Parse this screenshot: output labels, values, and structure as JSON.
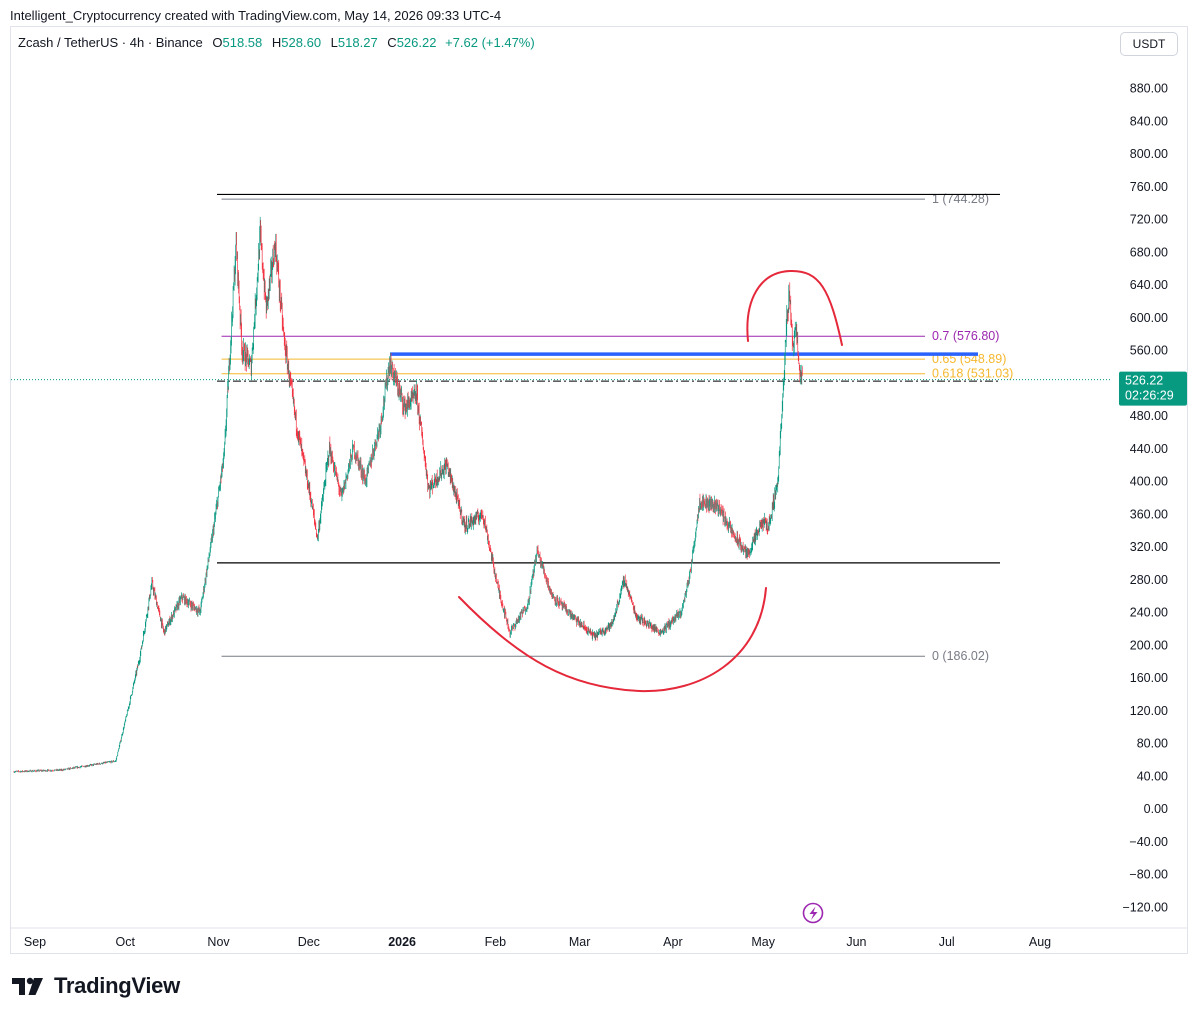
{
  "header": {
    "attribution": "Intelligent_Cryptocurrency created with TradingView.com, May 14, 2026 09:33 UTC-4"
  },
  "symbol": {
    "name": "Zcash / TetherUS · 4h · Binance",
    "o_label": "O",
    "o_value": "518.58",
    "h_label": "H",
    "h_value": "528.60",
    "l_label": "L",
    "l_value": "518.27",
    "c_label": "C",
    "c_value": "526.22",
    "change": "+7.62 (+1.47%)"
  },
  "currency_button": "USDT",
  "footer": {
    "brand": "TradingView"
  },
  "colors": {
    "up": "#089981",
    "down": "#f23645",
    "blue_line": "#2962ff",
    "fib_07": "#9c27b0",
    "fib_gold": "#f5b82e",
    "fib_gray": "#787b86",
    "annotation": "#e5283a",
    "price_badge": "#089981",
    "bolt": "#9c27b0"
  },
  "chart_data": {
    "type": "candlestick",
    "timeframe": "4h",
    "y_axis": {
      "ylim": [
        -130,
        920
      ],
      "ticks": [
        "880.00",
        "840.00",
        "800.00",
        "760.00",
        "720.00",
        "680.00",
        "640.00",
        "600.00",
        "560.00",
        "520.00",
        "480.00",
        "440.00",
        "400.00",
        "360.00",
        "320.00",
        "280.00",
        "240.00",
        "200.00",
        "160.00",
        "120.00",
        "80.00",
        "40.00",
        "0.00",
        "−40.00",
        "−80.00",
        "−120.00"
      ]
    },
    "x_axis": {
      "range": [
        "2025-08-25",
        "2026-08-28"
      ],
      "ticks": [
        {
          "label": "Sep",
          "date": "2025-09-01"
        },
        {
          "label": "Oct",
          "date": "2025-10-01"
        },
        {
          "label": "Nov",
          "date": "2025-11-01"
        },
        {
          "label": "Dec",
          "date": "2025-12-01"
        },
        {
          "label": "2026",
          "date": "2026-01-01",
          "bold": true
        },
        {
          "label": "Feb",
          "date": "2026-02-01"
        },
        {
          "label": "Mar",
          "date": "2026-03-01"
        },
        {
          "label": "Apr",
          "date": "2026-04-01"
        },
        {
          "label": "May",
          "date": "2026-05-01"
        },
        {
          "label": "Jun",
          "date": "2026-06-01"
        },
        {
          "label": "Jul",
          "date": "2026-07-01"
        },
        {
          "label": "Aug",
          "date": "2026-08-01"
        }
      ]
    },
    "price_path": [
      [
        "2025-08-25",
        45
      ],
      [
        "2025-09-10",
        47
      ],
      [
        "2025-09-28",
        58
      ],
      [
        "2025-10-02",
        120
      ],
      [
        "2025-10-06",
        185
      ],
      [
        "2025-10-10",
        275
      ],
      [
        "2025-10-14",
        215
      ],
      [
        "2025-10-20",
        258
      ],
      [
        "2025-10-26",
        240
      ],
      [
        "2025-10-30",
        330
      ],
      [
        "2025-11-03",
        430
      ],
      [
        "2025-11-07",
        690
      ],
      [
        "2025-11-09",
        560
      ],
      [
        "2025-11-12",
        540
      ],
      [
        "2025-11-15",
        700
      ],
      [
        "2025-11-17",
        610
      ],
      [
        "2025-11-20",
        690
      ],
      [
        "2025-11-23",
        570
      ],
      [
        "2025-11-27",
        470
      ],
      [
        "2025-12-02",
        375
      ],
      [
        "2025-12-04",
        330
      ],
      [
        "2025-12-08",
        440
      ],
      [
        "2025-12-12",
        380
      ],
      [
        "2025-12-16",
        440
      ],
      [
        "2025-12-20",
        400
      ],
      [
        "2025-12-25",
        470
      ],
      [
        "2025-12-28",
        545
      ],
      [
        "2026-01-02",
        490
      ],
      [
        "2026-01-06",
        505
      ],
      [
        "2026-01-10",
        390
      ],
      [
        "2026-01-16",
        420
      ],
      [
        "2026-01-22",
        345
      ],
      [
        "2026-01-28",
        360
      ],
      [
        "2026-02-02",
        270
      ],
      [
        "2026-02-06",
        215
      ],
      [
        "2026-02-12",
        250
      ],
      [
        "2026-02-15",
        315
      ],
      [
        "2026-02-20",
        260
      ],
      [
        "2026-02-28",
        230
      ],
      [
        "2026-03-06",
        210
      ],
      [
        "2026-03-12",
        225
      ],
      [
        "2026-03-16",
        280
      ],
      [
        "2026-03-20",
        235
      ],
      [
        "2026-03-28",
        215
      ],
      [
        "2026-04-04",
        240
      ],
      [
        "2026-04-07",
        290
      ],
      [
        "2026-04-10",
        375
      ],
      [
        "2026-04-16",
        370
      ],
      [
        "2026-04-22",
        330
      ],
      [
        "2026-04-26",
        310
      ],
      [
        "2026-05-01",
        350
      ],
      [
        "2026-05-03",
        345
      ],
      [
        "2026-05-06",
        400
      ],
      [
        "2026-05-08",
        520
      ],
      [
        "2026-05-09",
        600
      ],
      [
        "2026-05-10",
        630
      ],
      [
        "2026-05-11",
        560
      ],
      [
        "2026-05-12",
        595
      ],
      [
        "2026-05-13",
        540
      ],
      [
        "2026-05-14",
        526.22
      ]
    ],
    "current_price": {
      "value": "526.22",
      "countdown": "02:26:29"
    },
    "levels": [
      {
        "type": "fib",
        "value": 744.28,
        "label": "1 (744.28)",
        "color": "#787b86"
      },
      {
        "type": "fib",
        "value": 576.8,
        "label": "0.7 (576.80)",
        "color": "#9c27b0"
      },
      {
        "type": "fib",
        "value": 548.89,
        "label": "0.65 (548.89)",
        "color": "#f5b82e"
      },
      {
        "type": "fib",
        "value": 531.03,
        "label": "0.618 (531.03)",
        "color": "#f5b82e"
      },
      {
        "type": "fib",
        "value": 186.02,
        "label": "0 (186.02)",
        "color": "#787b86"
      },
      {
        "type": "horizontal",
        "value": 750,
        "color": "#000000"
      },
      {
        "type": "horizontal",
        "value": 300,
        "color": "#000000"
      },
      {
        "type": "horizontal-dashdot",
        "value": 522,
        "color": "#000000"
      },
      {
        "type": "support-resistance",
        "value": 555,
        "start": "2025-12-28",
        "color": "#2962ff"
      }
    ],
    "annotations": [
      {
        "type": "cup-arc",
        "description": "rounded bottom"
      },
      {
        "type": "cap-arc",
        "description": "rounded top"
      }
    ]
  }
}
